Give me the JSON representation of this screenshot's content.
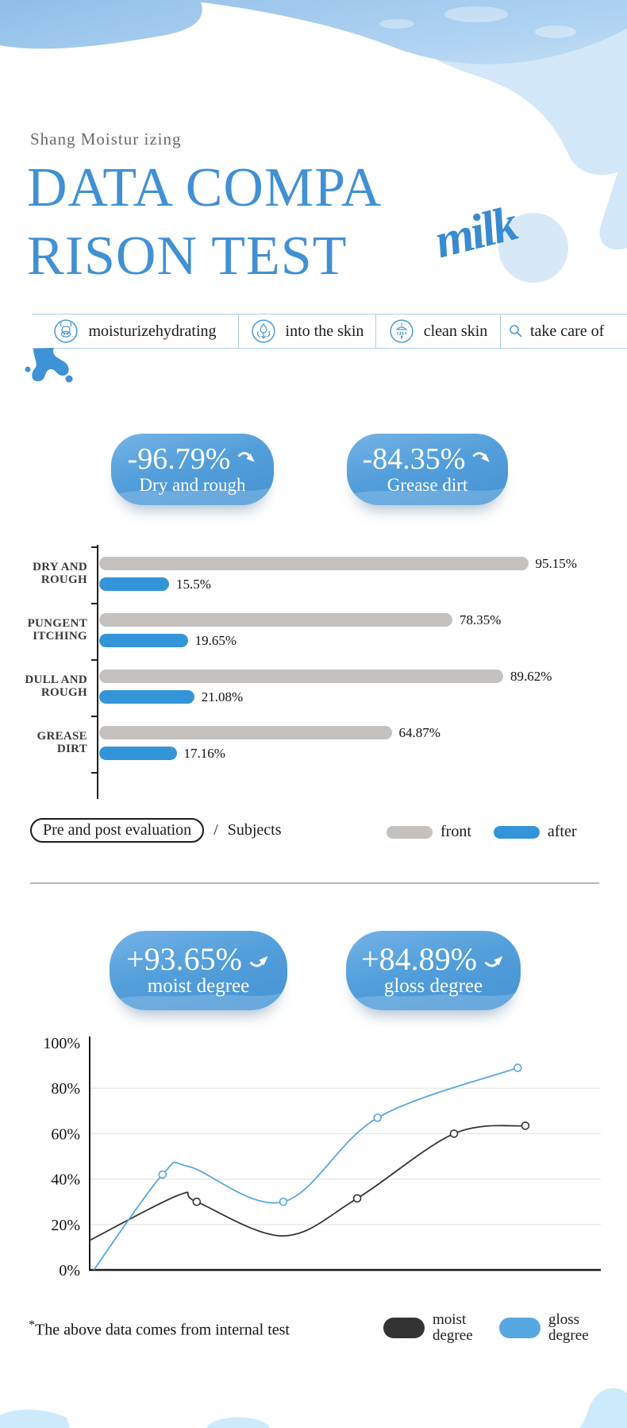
{
  "header": {
    "subtitle": "Shang Moistur izing",
    "title_line1": "DATA COMPA",
    "title_line2": "RISON TEST",
    "logo_text": "milk"
  },
  "features": [
    {
      "icon": "cow-icon",
      "label": "moisturizehydrating"
    },
    {
      "icon": "absorb-icon",
      "label": "into the skin"
    },
    {
      "icon": "shower-icon",
      "label": "clean skin"
    },
    {
      "icon": "search-icon",
      "label": "take care of"
    }
  ],
  "badges_top": [
    {
      "value": "-96.79%",
      "label": "Dry and rough",
      "direction": "down"
    },
    {
      "value": "-84.35%",
      "label": "Grease dirt",
      "direction": "down"
    }
  ],
  "badges_bottom": [
    {
      "value": "+93.65%",
      "label": "moist degree",
      "direction": "up"
    },
    {
      "value": "+84.89%",
      "label": "gloss degree",
      "direction": "up"
    }
  ],
  "bar_legend": {
    "chip": "Pre and post evaluation",
    "separator": "/",
    "subjects_label": "Subjects"
  },
  "footnote": {
    "asterisk": "*",
    "text": "The above data comes from internal test"
  },
  "colors": {
    "accent_blue": "#4190d4",
    "badge_blue_top": "#69ade2",
    "badge_blue_bottom": "#4896d6",
    "bar_front": "#c4c1be",
    "bar_after": "#3395d8",
    "line_moist": "#333335",
    "line_gloss": "#55a7e0",
    "deco_light": "#d2e7f8",
    "deco_medium": "#9cc7ec"
  },
  "chart_data": [
    {
      "type": "bar",
      "orientation": "horizontal",
      "categories": [
        [
          "DRY AND",
          "ROUGH"
        ],
        [
          "PUNGENT",
          "ITCHING"
        ],
        [
          "DULL AND",
          "ROUGH"
        ],
        [
          "GREASE",
          "DIRT"
        ]
      ],
      "series": [
        {
          "name": "front",
          "color": "#c4c1be",
          "values": [
            95.15,
            78.35,
            89.62,
            64.87
          ]
        },
        {
          "name": "after",
          "color": "#3395d8",
          "values": [
            15.5,
            19.65,
            21.08,
            17.16
          ]
        }
      ],
      "value_suffix": "%",
      "xlim": [
        0,
        100
      ]
    },
    {
      "type": "line",
      "y_ticks": [
        100,
        80,
        60,
        40,
        20,
        0
      ],
      "y_tick_suffix": "%",
      "ylim": [
        0,
        100
      ],
      "grid": true,
      "legend_position": "bottom-right",
      "series": [
        {
          "name": "moist degree",
          "color": "#333335",
          "points": [
            {
              "x": 0,
              "y": 13
            },
            {
              "x": 0.175,
              "y": 33
            },
            {
              "x": 0.21,
              "y": 30,
              "marker": true
            },
            {
              "x": 0.38,
              "y": 15
            },
            {
              "x": 0.525,
              "y": 31.5,
              "marker": true
            },
            {
              "x": 0.715,
              "y": 60,
              "marker": true
            },
            {
              "x": 0.855,
              "y": 63.5,
              "marker": true
            }
          ]
        },
        {
          "name": "gloss degree",
          "color": "#55a7e0",
          "points": [
            {
              "x": 0.008,
              "y": 0
            },
            {
              "x": 0.143,
              "y": 42,
              "marker": true
            },
            {
              "x": 0.195,
              "y": 45.5
            },
            {
              "x": 0.38,
              "y": 30,
              "marker": true
            },
            {
              "x": 0.565,
              "y": 67,
              "marker": true
            },
            {
              "x": 0.84,
              "y": 89,
              "marker": true
            }
          ]
        }
      ]
    }
  ]
}
